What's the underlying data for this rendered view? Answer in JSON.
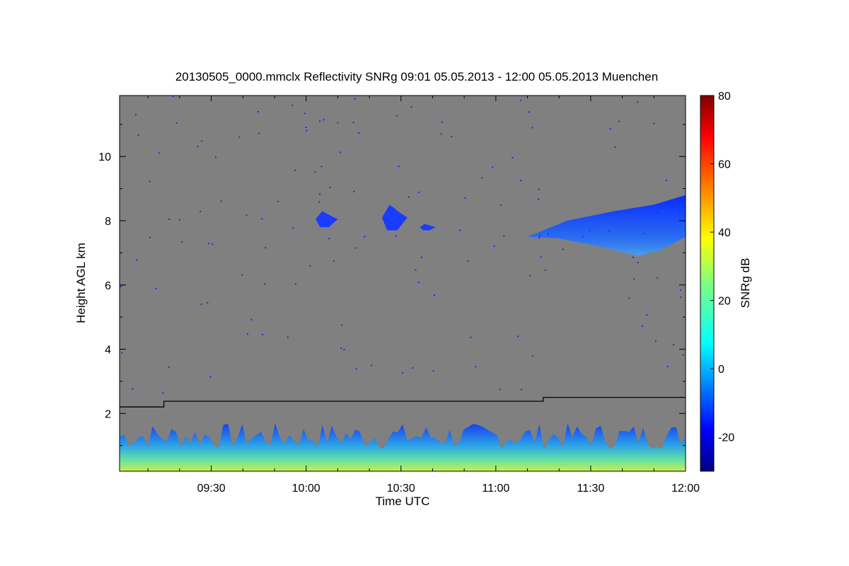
{
  "chart_data": {
    "type": "heatmap",
    "title": "20130505_0000.mmclx Reflectivity SNRg   09:01 05.05.2013 - 12:00 05.05.2013 Muenchen",
    "xlabel": "Time UTC",
    "ylabel": "Height AGL km",
    "colorbar_label": "SNRg dB",
    "x_range": [
      "09:01",
      "12:00"
    ],
    "y_range": [
      0.2,
      11.9
    ],
    "color_range": [
      -30,
      80
    ],
    "x_ticks": [
      "09:30",
      "10:00",
      "10:30",
      "11:00",
      "11:30",
      "12:00"
    ],
    "y_ticks": [
      "2",
      "4",
      "6",
      "8",
      "10"
    ],
    "color_ticks": [
      "-20",
      "0",
      "20",
      "40",
      "60",
      "80"
    ],
    "background_color": "#808080",
    "colormap": "jet",
    "boundary_line": [
      {
        "time": "09:01",
        "height": 2.2
      },
      {
        "time": "09:15",
        "height": 2.2
      },
      {
        "time": "09:15",
        "height": 2.38
      },
      {
        "time": "11:15",
        "height": 2.38
      },
      {
        "time": "11:15",
        "height": 2.5
      },
      {
        "time": "12:00",
        "height": 2.5
      }
    ],
    "echo_regions": [
      {
        "name": "boundary-layer echo",
        "time_start": "09:01",
        "time_end": "12:00",
        "height_bottom": 0.2,
        "height_top": 1.7,
        "snr_db": 10
      },
      {
        "name": "cloud near 10:05",
        "time_start": "10:03",
        "time_end": "10:10",
        "height_bottom": 7.8,
        "height_top": 8.3,
        "snr_db": -15
      },
      {
        "name": "cloud near 10:28",
        "time_start": "10:24",
        "time_end": "10:32",
        "height_bottom": 7.7,
        "height_top": 8.5,
        "snr_db": -15
      },
      {
        "name": "cloud near 10:38",
        "time_start": "10:36",
        "time_end": "10:41",
        "height_bottom": 7.7,
        "height_top": 7.9,
        "snr_db": -15
      },
      {
        "name": "cirrus after 11:10",
        "time_start": "11:10",
        "time_end": "12:00",
        "height_bottom": 6.9,
        "height_top": 8.8,
        "snr_db": -8
      }
    ]
  }
}
